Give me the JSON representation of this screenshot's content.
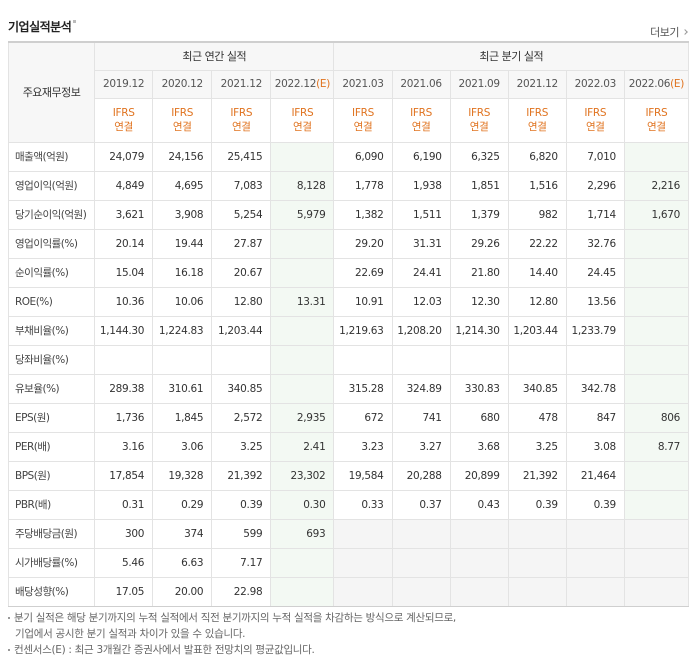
{
  "header": {
    "title": "기업실적분석",
    "more_label": "더보기"
  },
  "table": {
    "corner_label": "주요재무정보",
    "annual_group": "최근 연간 실적",
    "quarter_group": "최근 분기 실적",
    "ifrs": {
      "line1": "IFRS",
      "line2": "연결"
    },
    "annual_dates": [
      {
        "text": "2019.12",
        "est": ""
      },
      {
        "text": "2020.12",
        "est": ""
      },
      {
        "text": "2021.12",
        "est": ""
      },
      {
        "text": "2022.12",
        "est": "(E)"
      }
    ],
    "quarter_dates": [
      {
        "text": "2021.03",
        "est": ""
      },
      {
        "text": "2021.06",
        "est": ""
      },
      {
        "text": "2021.09",
        "est": ""
      },
      {
        "text": "2021.12",
        "est": ""
      },
      {
        "text": "2022.03",
        "est": ""
      },
      {
        "text": "2022.06",
        "est": "(E)"
      }
    ],
    "rows": [
      {
        "label": "매출액(억원)",
        "values": [
          "24,079",
          "24,156",
          "25,415",
          "",
          "6,090",
          "6,190",
          "6,325",
          "6,820",
          "7,010",
          ""
        ]
      },
      {
        "label": "영업이익(억원)",
        "values": [
          "4,849",
          "4,695",
          "7,083",
          "8,128",
          "1,778",
          "1,938",
          "1,851",
          "1,516",
          "2,296",
          "2,216"
        ]
      },
      {
        "label": "당기순이익(억원)",
        "values": [
          "3,621",
          "3,908",
          "5,254",
          "5,979",
          "1,382",
          "1,511",
          "1,379",
          "982",
          "1,714",
          "1,670"
        ]
      },
      {
        "label": "영업이익률(%)",
        "values": [
          "20.14",
          "19.44",
          "27.87",
          "",
          "29.20",
          "31.31",
          "29.26",
          "22.22",
          "32.76",
          ""
        ]
      },
      {
        "label": "순이익률(%)",
        "values": [
          "15.04",
          "16.18",
          "20.67",
          "",
          "22.69",
          "24.41",
          "21.80",
          "14.40",
          "24.45",
          ""
        ]
      },
      {
        "label": "ROE(%)",
        "values": [
          "10.36",
          "10.06",
          "12.80",
          "13.31",
          "10.91",
          "12.03",
          "12.30",
          "12.80",
          "13.56",
          ""
        ]
      },
      {
        "label": "부채비율(%)",
        "values": [
          "1,144.30",
          "1,224.83",
          "1,203.44",
          "",
          "1,219.63",
          "1,208.20",
          "1,214.30",
          "1,203.44",
          "1,233.79",
          ""
        ]
      },
      {
        "label": "당좌비율(%)",
        "values": [
          "",
          "",
          "",
          "",
          "",
          "",
          "",
          "",
          "",
          ""
        ]
      },
      {
        "label": "유보율(%)",
        "values": [
          "289.38",
          "310.61",
          "340.85",
          "",
          "315.28",
          "324.89",
          "330.83",
          "340.85",
          "342.78",
          ""
        ]
      },
      {
        "label": "EPS(원)",
        "values": [
          "1,736",
          "1,845",
          "2,572",
          "2,935",
          "672",
          "741",
          "680",
          "478",
          "847",
          "806"
        ]
      },
      {
        "label": "PER(배)",
        "values": [
          "3.16",
          "3.06",
          "3.25",
          "2.41",
          "3.23",
          "3.27",
          "3.68",
          "3.25",
          "3.08",
          "8.77"
        ]
      },
      {
        "label": "BPS(원)",
        "values": [
          "17,854",
          "19,328",
          "21,392",
          "23,302",
          "19,584",
          "20,288",
          "20,899",
          "21,392",
          "21,464",
          ""
        ]
      },
      {
        "label": "PBR(배)",
        "values": [
          "0.31",
          "0.29",
          "0.39",
          "0.30",
          "0.33",
          "0.37",
          "0.43",
          "0.39",
          "0.39",
          ""
        ]
      },
      {
        "label": "주당배당금(원)",
        "values": [
          "300",
          "374",
          "599",
          "693",
          "",
          "",
          "",
          "",
          "",
          ""
        ],
        "quarter_na": true
      },
      {
        "label": "시가배당률(%)",
        "values": [
          "5.46",
          "6.63",
          "7.17",
          "",
          "",
          "",
          "",
          "",
          "",
          ""
        ],
        "quarter_na": true
      },
      {
        "label": "배당성향(%)",
        "values": [
          "17.05",
          "20.00",
          "22.98",
          "",
          "",
          "",
          "",
          "",
          "",
          ""
        ],
        "quarter_na": true
      }
    ]
  },
  "notes": {
    "line1": "분기 실적은 해당 분기까지의 누적 실적에서 직전 분기까지의 누적 실적을 차감하는 방식으로 계산되므로,",
    "line2": "기업에서 공시한 분기 실적과 차이가 있을 수 있습니다.",
    "line3": "컨센서스(E) : 최근 3개월간 증권사에서 발표한 전망치의 평균값입니다."
  },
  "colors": {
    "accent": "#e0731f",
    "estimate_bg": "#f3f9f3",
    "header_bg": "#f7f7f7"
  }
}
